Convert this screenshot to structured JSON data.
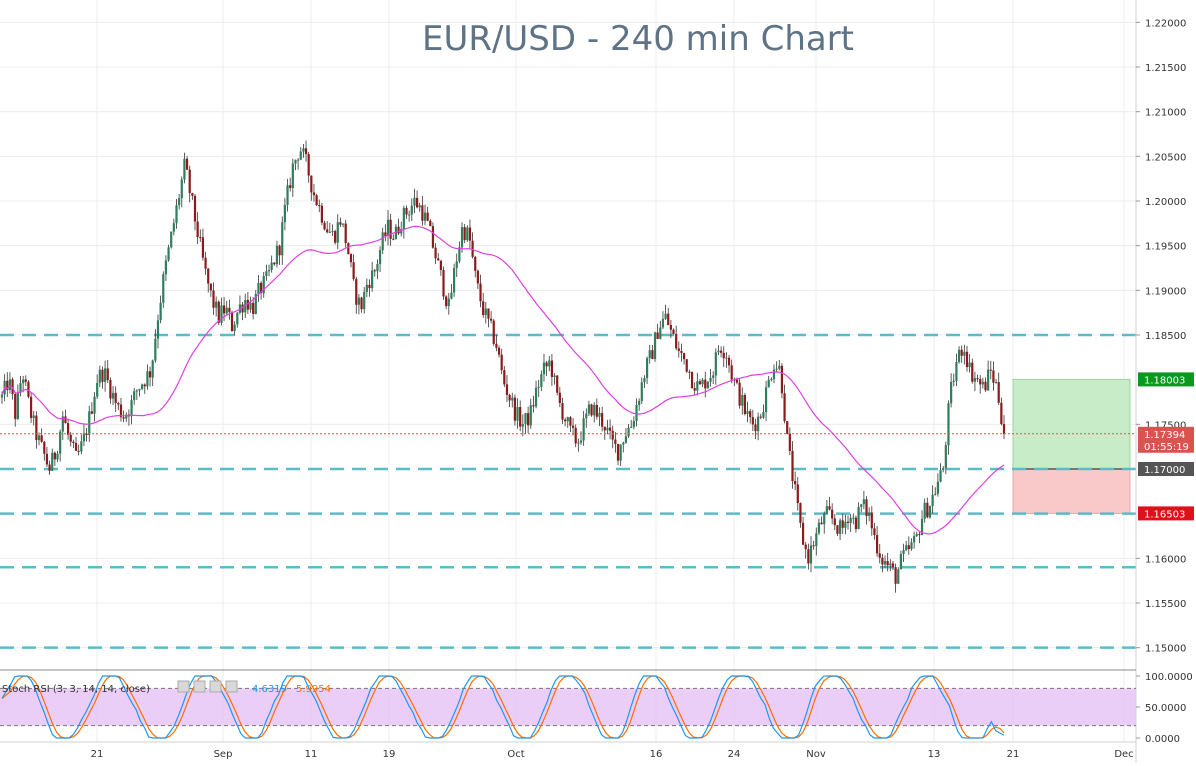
{
  "chart_data": {
    "type": "candlestick",
    "title": "EUR/USD - 240 min Chart",
    "price_axis": {
      "ticks": [
        "1.22000",
        "1.21500",
        "1.21000",
        "1.20500",
        "1.20000",
        "1.19500",
        "1.19000",
        "1.18500",
        "1.17500",
        "1.16000",
        "1.15500",
        "1.15000"
      ],
      "ylim": [
        1.1475,
        1.2225
      ]
    },
    "x_axis": {
      "ticks": [
        "21",
        "Sep",
        "11",
        "19",
        "Oct",
        "16",
        "24",
        "Nov",
        "13",
        "21",
        "Dec"
      ]
    },
    "price_labels": [
      {
        "text": "1.18003",
        "value": 1.18003,
        "color": "#089a1e"
      },
      {
        "text": "1.17394",
        "value": 1.17394,
        "color": "#d9534f"
      },
      {
        "text": "01:55:19",
        "value": 1.1726,
        "color": "#d9534f"
      },
      {
        "text": "1.17000",
        "value": 1.17,
        "color": "#555555"
      },
      {
        "text": "1.16503",
        "value": 1.16503,
        "color": "#e0101a"
      }
    ],
    "horizontal_levels": [
      1.185,
      1.17,
      1.165,
      1.159,
      1.15
    ],
    "current_price": 1.17394,
    "trade_box": {
      "entry": 1.17,
      "target": 1.18003,
      "stop": 1.16503
    },
    "stoch_rsi": {
      "label": "Stoch RSI (3, 3, 14, 14, close)",
      "k": "4.6319",
      "d": "5.9954",
      "ticks": [
        "100.0000",
        "50.0000",
        "0.0000"
      ],
      "bands": [
        20,
        80
      ],
      "colors": {
        "k": "#2196f3",
        "d": "#ff6d00"
      }
    },
    "colors": {
      "bull": "#2e7d5b",
      "bear": "#8b1a1a",
      "ma": "#e040e0",
      "level": "#5bbcc8",
      "target_zone": "#c8ecc8",
      "stop_zone": "#f9c9c9",
      "title": "#5f7386",
      "stoch_band": "#e6c6f7"
    },
    "ohlc_path": [
      1.178,
      1.18,
      1.176,
      1.181,
      1.177,
      1.174,
      1.172,
      1.17,
      1.172,
      1.176,
      1.173,
      1.171,
      1.173,
      1.176,
      1.18,
      1.181,
      1.179,
      1.177,
      1.176,
      1.177,
      1.179,
      1.18,
      1.181,
      1.187,
      1.192,
      1.196,
      1.2,
      1.204,
      1.2,
      1.196,
      1.192,
      1.189,
      1.187,
      1.188,
      1.186,
      1.188,
      1.189,
      1.188,
      1.19,
      1.191,
      1.193,
      1.195,
      1.2,
      1.204,
      1.206,
      1.204,
      1.201,
      1.199,
      1.197,
      1.196,
      1.198,
      1.195,
      1.19,
      1.188,
      1.191,
      1.192,
      1.195,
      1.197,
      1.196,
      1.198,
      1.199,
      1.2,
      1.199,
      1.197,
      1.194,
      1.191,
      1.188,
      1.193,
      1.197,
      1.196,
      1.191,
      1.188,
      1.186,
      1.184,
      1.18,
      1.178,
      1.176,
      1.175,
      1.176,
      1.179,
      1.181,
      1.182,
      1.178,
      1.176,
      1.174,
      1.173,
      1.175,
      1.177,
      1.176,
      1.175,
      1.173,
      1.172,
      1.174,
      1.175,
      1.178,
      1.181,
      1.183,
      1.186,
      1.187,
      1.185,
      1.183,
      1.182,
      1.18,
      1.179,
      1.18,
      1.181,
      1.184,
      1.183,
      1.18,
      1.178,
      1.176,
      1.175,
      1.176,
      1.179,
      1.182,
      1.181,
      1.173,
      1.168,
      1.163,
      1.16,
      1.162,
      1.164,
      1.165,
      1.164,
      1.163,
      1.165,
      1.164,
      1.166,
      1.165,
      1.162,
      1.16,
      1.159,
      1.158,
      1.16,
      1.161,
      1.162,
      1.165,
      1.166,
      1.168,
      1.17,
      1.178,
      1.182,
      1.184,
      1.181,
      1.18,
      1.179,
      1.181,
      1.179,
      1.174
    ]
  }
}
